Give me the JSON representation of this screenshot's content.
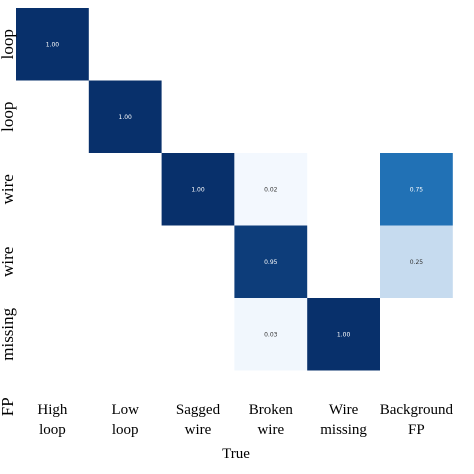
{
  "chart_data": {
    "type": "heatmap",
    "xlabel": "True",
    "x_categories": [
      [
        "High",
        "loop"
      ],
      [
        "Low",
        "loop"
      ],
      [
        "Sagged",
        "wire"
      ],
      [
        "Broken",
        "wire"
      ],
      [
        "Wire",
        "missing"
      ],
      [
        "Background",
        "FP"
      ]
    ],
    "y_tick_labels": [
      "loop",
      "loop",
      "wire",
      "wire",
      "missing",
      "FP"
    ],
    "cells": [
      {
        "row": 0,
        "col": 0,
        "value": 1.0,
        "label": "1.00"
      },
      {
        "row": 1,
        "col": 1,
        "value": 1.0,
        "label": "1.00"
      },
      {
        "row": 2,
        "col": 2,
        "value": 1.0,
        "label": "1.00"
      },
      {
        "row": 2,
        "col": 3,
        "value": 0.02,
        "label": "0.02"
      },
      {
        "row": 2,
        "col": 5,
        "value": 0.75,
        "label": "0.75"
      },
      {
        "row": 3,
        "col": 3,
        "value": 0.95,
        "label": "0.95"
      },
      {
        "row": 3,
        "col": 5,
        "value": 0.25,
        "label": "0.25"
      },
      {
        "row": 4,
        "col": 3,
        "value": 0.03,
        "label": "0.03"
      },
      {
        "row": 4,
        "col": 4,
        "value": 1.0,
        "label": "1.00"
      }
    ],
    "colormap": [
      "#f7fbff",
      "#c6dbef",
      "#6baed6",
      "#2171b5",
      "#08306b"
    ],
    "grid": false
  }
}
